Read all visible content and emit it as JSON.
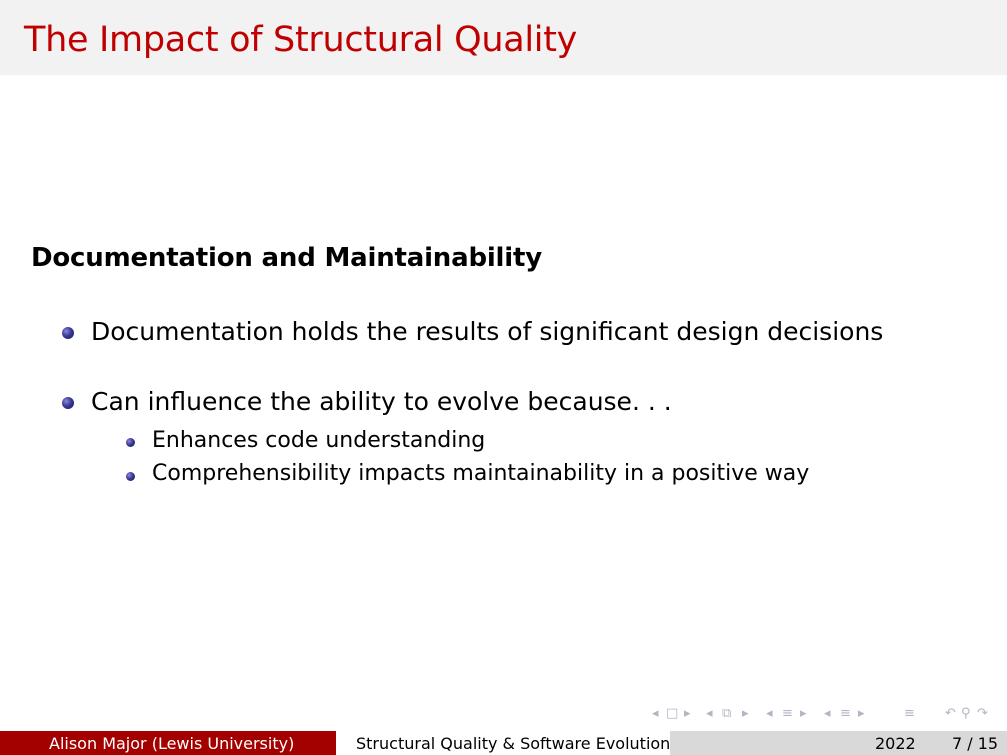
{
  "slide": {
    "title": "The Impact of Structural Quality",
    "block_title": "Documentation and Maintainability",
    "bullets": [
      {
        "text": "Documentation holds the results of significant design decisions",
        "subitems": []
      },
      {
        "text": "Can influence the ability to evolve because. . .",
        "subitems": [
          "Enhances code understanding",
          "Comprehensibility impacts maintainability in a positive way"
        ]
      }
    ]
  },
  "nav_symbols": {
    "slide_prev": "◂",
    "slide_icon": "□",
    "slide_next": "▸",
    "frame_prev": "◂",
    "frame_icon": "⧉",
    "frame_next": "▸",
    "section_prev": "◂",
    "section_icon": "≡",
    "section_next": "▸",
    "subsection_prev": "◂",
    "subsection_icon": "≡",
    "subsection_next": "▸",
    "appendix_icon": "≡",
    "back_icon": "↶",
    "search_icon": "⚲",
    "forward_icon": "↷"
  },
  "footer": {
    "author": "Alison Major  (Lewis University)",
    "short_title": "Structural Quality & Software Evolution",
    "year": "2022",
    "page": "7 / 15"
  },
  "colors": {
    "title": "#c00000",
    "footer_left_bg": "#a30000",
    "footer_right_bg": "#d9d9d9",
    "title_bar_bg": "#f2f2f2",
    "bullet": "#2b2b7a"
  }
}
